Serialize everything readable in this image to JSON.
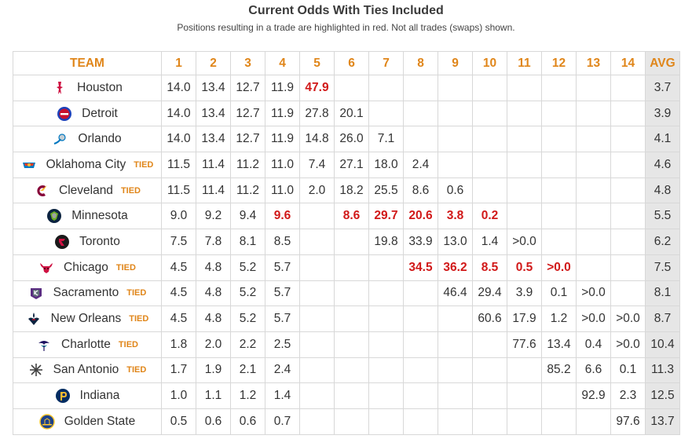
{
  "header": {
    "title": "Current Odds With Ties Included",
    "subtitle": "Positions resulting in a trade are highlighted in red. Not all trades (swaps) shown."
  },
  "table": {
    "team_header": "TEAM",
    "pick_headers": [
      "1",
      "2",
      "3",
      "4",
      "5",
      "6",
      "7",
      "8",
      "9",
      "10",
      "11",
      "12",
      "13",
      "14"
    ],
    "avg_header": "AVG",
    "tied_label": "TIED",
    "colors": {
      "accent": "#e0861a",
      "trade": "#d11919",
      "avg_bg": "#e6e6e6",
      "border": "#d8d8d8"
    },
    "rows": [
      {
        "team": "Houston",
        "icon": "rockets-logo-icon",
        "tied": false,
        "cells": [
          "14.0",
          "13.4",
          "12.7",
          "11.9",
          "47.9",
          "",
          "",
          "",
          "",
          "",
          "",
          "",
          "",
          ""
        ],
        "trades": [
          4
        ],
        "avg": "3.7"
      },
      {
        "team": "Detroit",
        "icon": "pistons-logo-icon",
        "tied": false,
        "cells": [
          "14.0",
          "13.4",
          "12.7",
          "11.9",
          "27.8",
          "20.1",
          "",
          "",
          "",
          "",
          "",
          "",
          "",
          ""
        ],
        "trades": [],
        "avg": "3.9"
      },
      {
        "team": "Orlando",
        "icon": "magic-logo-icon",
        "tied": false,
        "cells": [
          "14.0",
          "13.4",
          "12.7",
          "11.9",
          "14.8",
          "26.0",
          "7.1",
          "",
          "",
          "",
          "",
          "",
          "",
          ""
        ],
        "trades": [],
        "avg": "4.1"
      },
      {
        "team": "Oklahoma City",
        "icon": "thunder-logo-icon",
        "tied": true,
        "cells": [
          "11.5",
          "11.4",
          "11.2",
          "11.0",
          "7.4",
          "27.1",
          "18.0",
          "2.4",
          "",
          "",
          "",
          "",
          "",
          ""
        ],
        "trades": [],
        "avg": "4.6"
      },
      {
        "team": "Cleveland",
        "icon": "cavaliers-logo-icon",
        "tied": true,
        "cells": [
          "11.5",
          "11.4",
          "11.2",
          "11.0",
          "2.0",
          "18.2",
          "25.5",
          "8.6",
          "0.6",
          "",
          "",
          "",
          "",
          ""
        ],
        "trades": [],
        "avg": "4.8"
      },
      {
        "team": "Minnesota",
        "icon": "timberwolves-logo-icon",
        "tied": false,
        "cells": [
          "9.0",
          "9.2",
          "9.4",
          "9.6",
          "",
          "8.6",
          "29.7",
          "20.6",
          "3.8",
          "0.2",
          "",
          "",
          "",
          ""
        ],
        "trades": [
          3,
          5,
          6,
          7,
          8,
          9
        ],
        "avg": "5.5"
      },
      {
        "team": "Toronto",
        "icon": "raptors-logo-icon",
        "tied": false,
        "cells": [
          "7.5",
          "7.8",
          "8.1",
          "8.5",
          "",
          "",
          "19.8",
          "33.9",
          "13.0",
          "1.4",
          ">0.0",
          "",
          "",
          ""
        ],
        "trades": [],
        "avg": "6.2"
      },
      {
        "team": "Chicago",
        "icon": "bulls-logo-icon",
        "tied": true,
        "cells": [
          "4.5",
          "4.8",
          "5.2",
          "5.7",
          "",
          "",
          "",
          "34.5",
          "36.2",
          "8.5",
          "0.5",
          ">0.0",
          "",
          ""
        ],
        "trades": [
          7,
          8,
          9,
          10,
          11
        ],
        "avg": "7.5"
      },
      {
        "team": "Sacramento",
        "icon": "kings-logo-icon",
        "tied": true,
        "cells": [
          "4.5",
          "4.8",
          "5.2",
          "5.7",
          "",
          "",
          "",
          "",
          "46.4",
          "29.4",
          "3.9",
          "0.1",
          ">0.0",
          ""
        ],
        "trades": [],
        "avg": "8.1"
      },
      {
        "team": "New Orleans",
        "icon": "pelicans-logo-icon",
        "tied": true,
        "cells": [
          "4.5",
          "4.8",
          "5.2",
          "5.7",
          "",
          "",
          "",
          "",
          "",
          "60.6",
          "17.9",
          "1.2",
          ">0.0",
          ">0.0"
        ],
        "trades": [],
        "avg": "8.7"
      },
      {
        "team": "Charlotte",
        "icon": "hornets-logo-icon",
        "tied": true,
        "cells": [
          "1.8",
          "2.0",
          "2.2",
          "2.5",
          "",
          "",
          "",
          "",
          "",
          "",
          "77.6",
          "13.4",
          "0.4",
          ">0.0"
        ],
        "trades": [],
        "avg": "10.4"
      },
      {
        "team": "San Antonio",
        "icon": "spurs-logo-icon",
        "tied": true,
        "cells": [
          "1.7",
          "1.9",
          "2.1",
          "2.4",
          "",
          "",
          "",
          "",
          "",
          "",
          "",
          "85.2",
          "6.6",
          "0.1"
        ],
        "trades": [],
        "avg": "11.3"
      },
      {
        "team": "Indiana",
        "icon": "pacers-logo-icon",
        "tied": false,
        "cells": [
          "1.0",
          "1.1",
          "1.2",
          "1.4",
          "",
          "",
          "",
          "",
          "",
          "",
          "",
          "",
          "92.9",
          "2.3"
        ],
        "trades": [],
        "avg": "12.5"
      },
      {
        "team": "Golden State",
        "icon": "warriors-logo-icon",
        "tied": false,
        "cells": [
          "0.5",
          "0.6",
          "0.6",
          "0.7",
          "",
          "",
          "",
          "",
          "",
          "",
          "",
          "",
          "",
          "97.6"
        ],
        "trades": [],
        "avg": "13.7"
      }
    ]
  }
}
